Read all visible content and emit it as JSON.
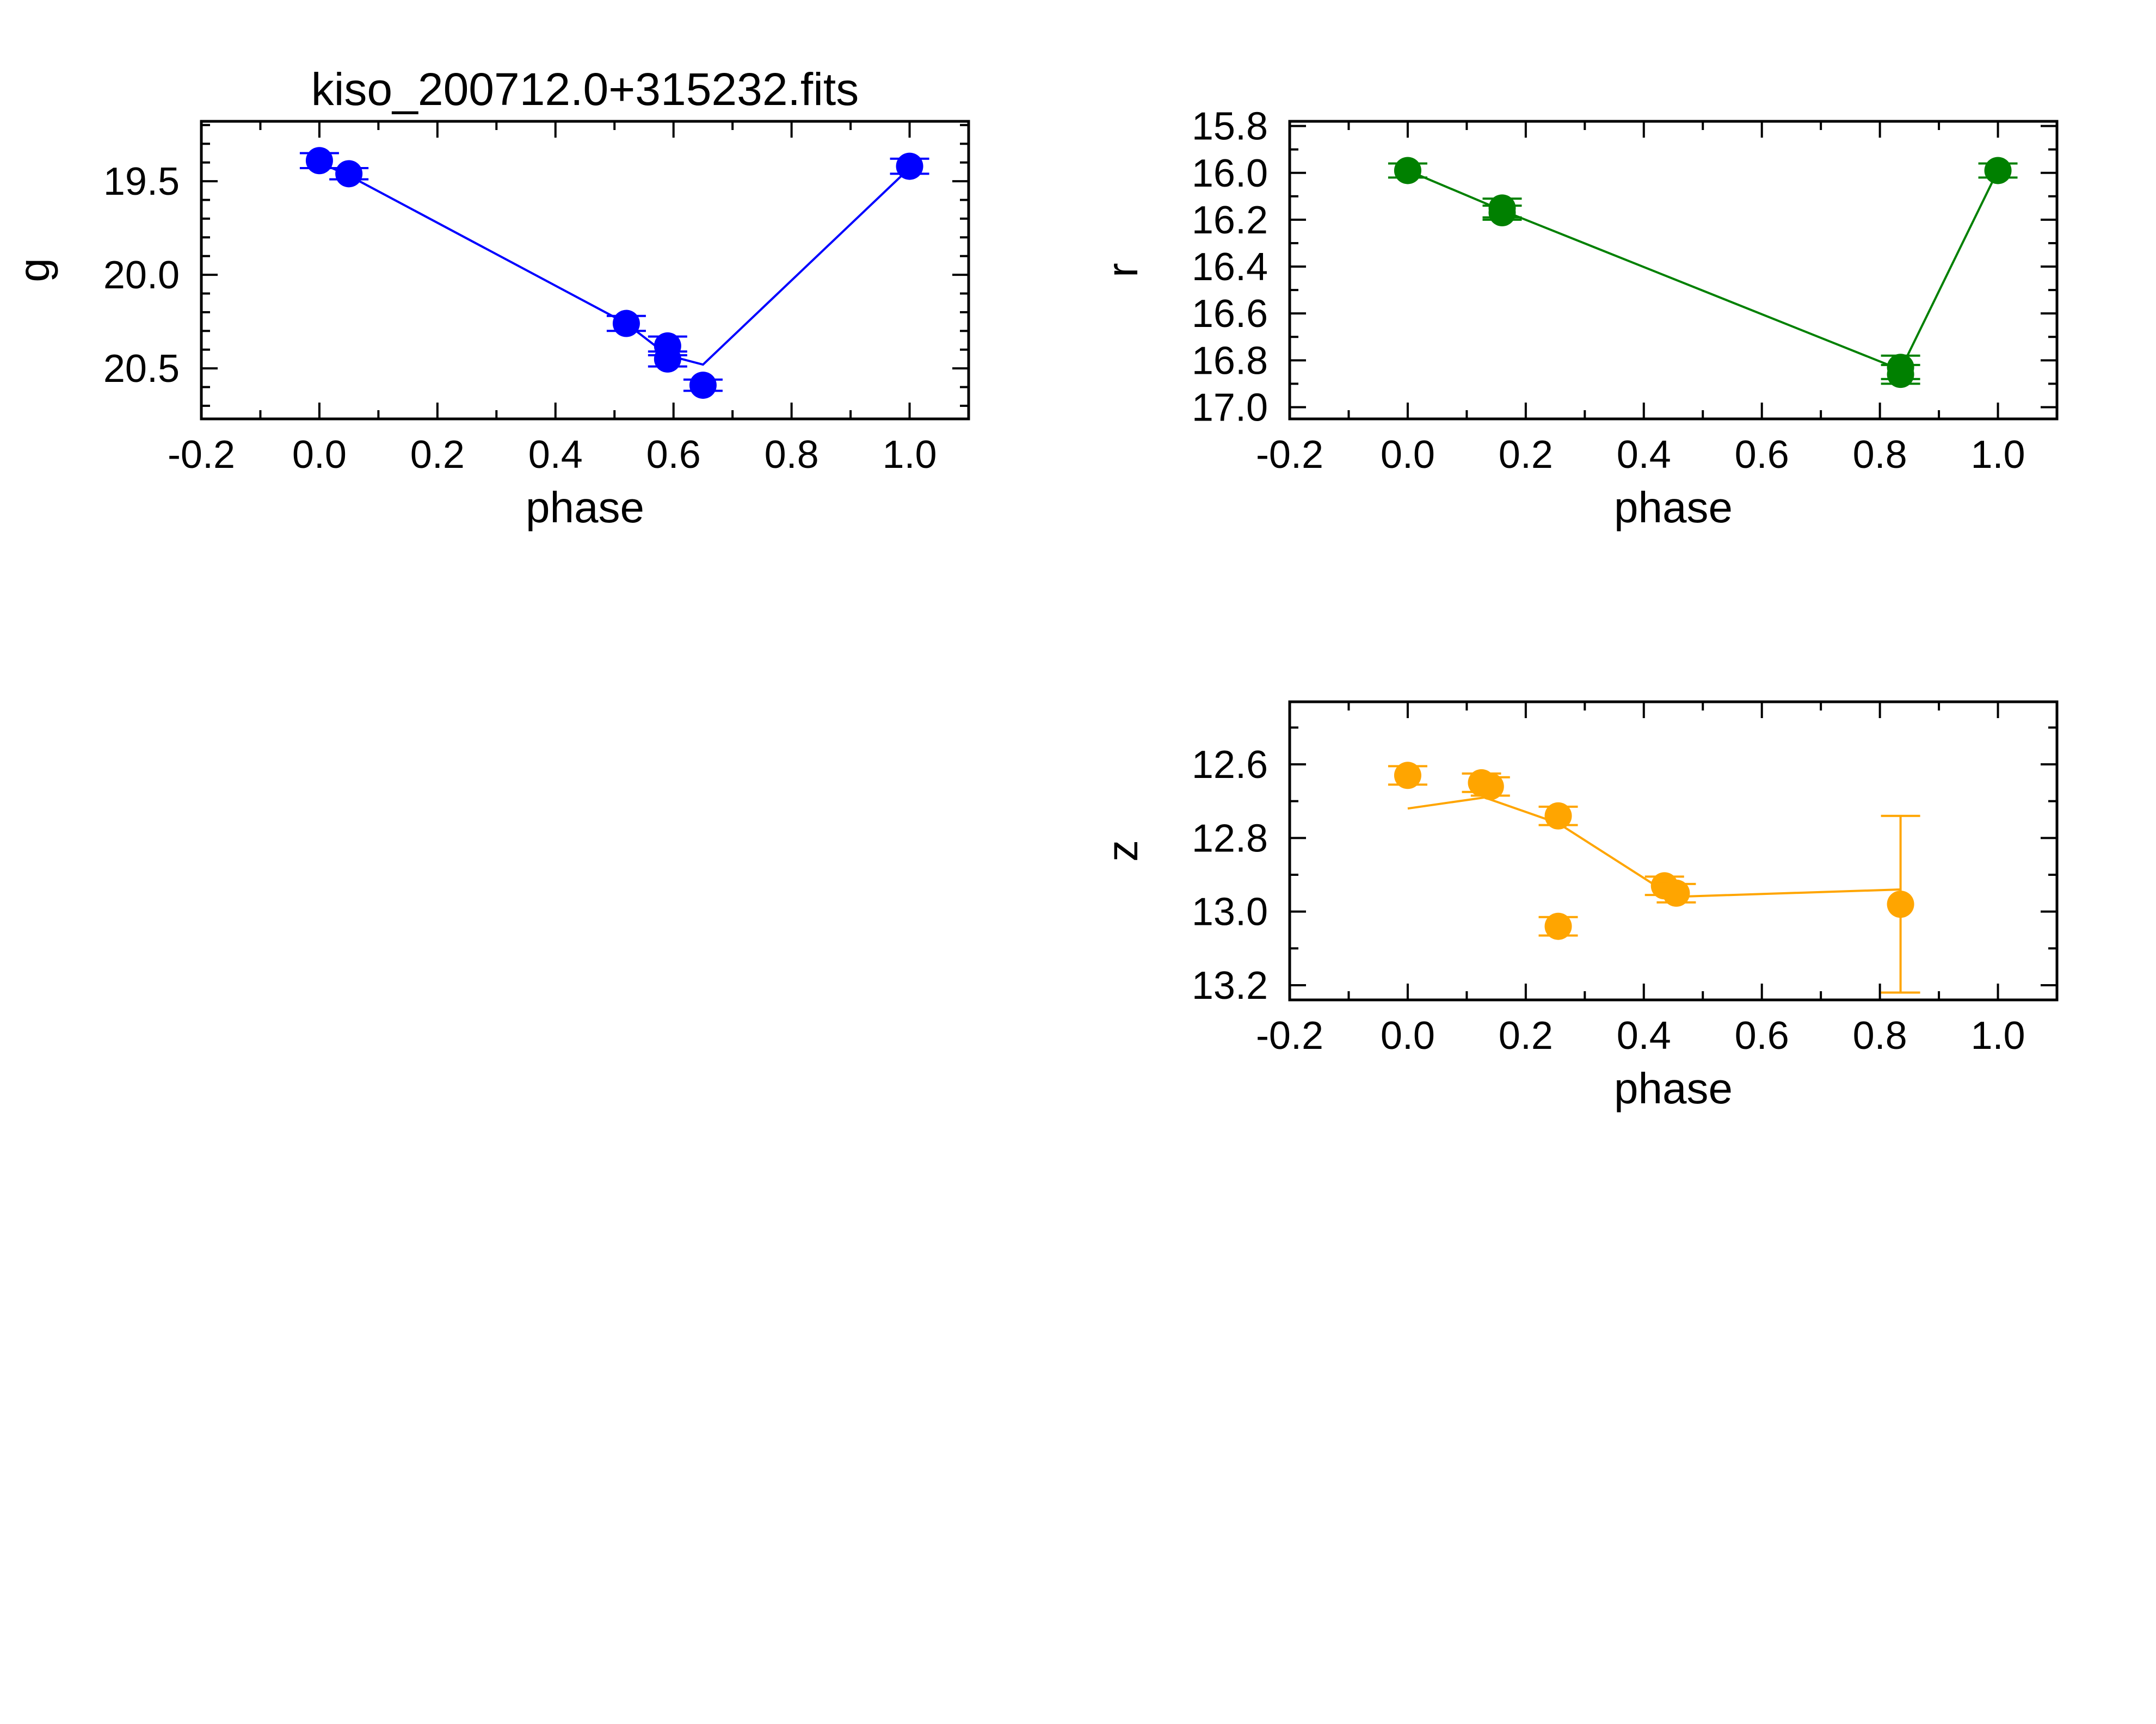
{
  "chart_data": [
    {
      "type": "scatter",
      "title": "kiso_200712.0+315232.fits",
      "xlabel": "phase",
      "ylabel": "g",
      "xlim": [
        -0.2,
        1.1
      ],
      "ylim": [
        20.77,
        19.18
      ],
      "y_inverted": true,
      "x_ticks": [
        -0.2,
        0.0,
        0.2,
        0.4,
        0.6,
        0.8,
        1.0
      ],
      "x_tick_labels": [
        "-0.2",
        "0.0",
        "0.2",
        "0.4",
        "0.6",
        "0.8",
        "1.0"
      ],
      "y_ticks": [
        19.5,
        20.0,
        20.5
      ],
      "y_tick_labels": [
        "19.5",
        "20.0",
        "20.5"
      ],
      "color": "#0000ff",
      "points": [
        {
          "x": 0.0,
          "y": 19.39,
          "err": 0.04
        },
        {
          "x": 0.05,
          "y": 19.46,
          "err": 0.03
        },
        {
          "x": 0.52,
          "y": 20.26,
          "err": 0.04
        },
        {
          "x": 0.59,
          "y": 20.38,
          "err": 0.05
        },
        {
          "x": 0.59,
          "y": 20.45,
          "err": 0.04
        },
        {
          "x": 0.65,
          "y": 20.59,
          "err": 0.03
        },
        {
          "x": 1.0,
          "y": 19.42,
          "err": 0.04
        }
      ],
      "line": [
        {
          "x": 0.0,
          "y": 19.4
        },
        {
          "x": 0.05,
          "y": 19.47
        },
        {
          "x": 0.52,
          "y": 20.26
        },
        {
          "x": 0.59,
          "y": 20.43
        },
        {
          "x": 0.65,
          "y": 20.48
        },
        {
          "x": 1.0,
          "y": 19.43
        }
      ]
    },
    {
      "type": "scatter",
      "title": "",
      "xlabel": "phase",
      "ylabel": "r",
      "xlim": [
        -0.2,
        1.1
      ],
      "ylim": [
        17.05,
        15.78
      ],
      "y_inverted": true,
      "x_ticks": [
        -0.2,
        0.0,
        0.2,
        0.4,
        0.6,
        0.8,
        1.0
      ],
      "x_tick_labels": [
        "-0.2",
        "0.0",
        "0.2",
        "0.4",
        "0.6",
        "0.8",
        "1.0"
      ],
      "y_ticks": [
        15.8,
        16.0,
        16.2,
        16.4,
        16.6,
        16.8,
        17.0
      ],
      "y_tick_labels": [
        "15.8",
        "16.0",
        "16.2",
        "16.4",
        "16.6",
        "16.8",
        "17.0"
      ],
      "color": "#008000",
      "points": [
        {
          "x": 0.0,
          "y": 15.99,
          "err": 0.03
        },
        {
          "x": 0.16,
          "y": 16.15,
          "err": 0.04
        },
        {
          "x": 0.16,
          "y": 16.17,
          "err": 0.03
        },
        {
          "x": 0.835,
          "y": 16.83,
          "err": 0.05
        },
        {
          "x": 0.835,
          "y": 16.86,
          "err": 0.04
        },
        {
          "x": 1.0,
          "y": 15.99,
          "err": 0.03
        }
      ],
      "line": [
        {
          "x": 0.0,
          "y": 15.99
        },
        {
          "x": 0.16,
          "y": 16.16
        },
        {
          "x": 0.835,
          "y": 16.84
        },
        {
          "x": 1.0,
          "y": 15.99
        }
      ]
    },
    {
      "type": "scatter",
      "title": "",
      "xlabel": "phase",
      "ylabel": "z",
      "xlim": [
        -0.2,
        1.1
      ],
      "ylim": [
        13.24,
        12.43
      ],
      "y_inverted": true,
      "x_ticks": [
        -0.2,
        0.0,
        0.2,
        0.4,
        0.6,
        0.8,
        1.0
      ],
      "x_tick_labels": [
        "-0.2",
        "0.0",
        "0.2",
        "0.4",
        "0.6",
        "0.8",
        "1.0"
      ],
      "y_ticks": [
        12.6,
        12.8,
        13.0,
        13.2
      ],
      "y_tick_labels": [
        "12.6",
        "12.8",
        "13.0",
        "13.2"
      ],
      "color": "#ffa500",
      "points": [
        {
          "x": 0.0,
          "y": 12.63,
          "err": 0.025
        },
        {
          "x": 0.125,
          "y": 12.65,
          "err": 0.025
        },
        {
          "x": 0.14,
          "y": 12.66,
          "err": 0.025
        },
        {
          "x": 0.255,
          "y": 12.74,
          "err": 0.025
        },
        {
          "x": 0.255,
          "y": 13.04,
          "err": 0.025
        },
        {
          "x": 0.435,
          "y": 12.93,
          "err": 0.025
        },
        {
          "x": 0.455,
          "y": 12.95,
          "err": 0.025
        },
        {
          "x": 0.835,
          "y": 12.98,
          "err": 0.24
        }
      ],
      "line": [
        {
          "x": 0.0,
          "y": 12.72
        },
        {
          "x": 0.13,
          "y": 12.69
        },
        {
          "x": 0.255,
          "y": 12.76
        },
        {
          "x": 0.45,
          "y": 12.96
        },
        {
          "x": 0.835,
          "y": 12.94
        }
      ]
    }
  ]
}
